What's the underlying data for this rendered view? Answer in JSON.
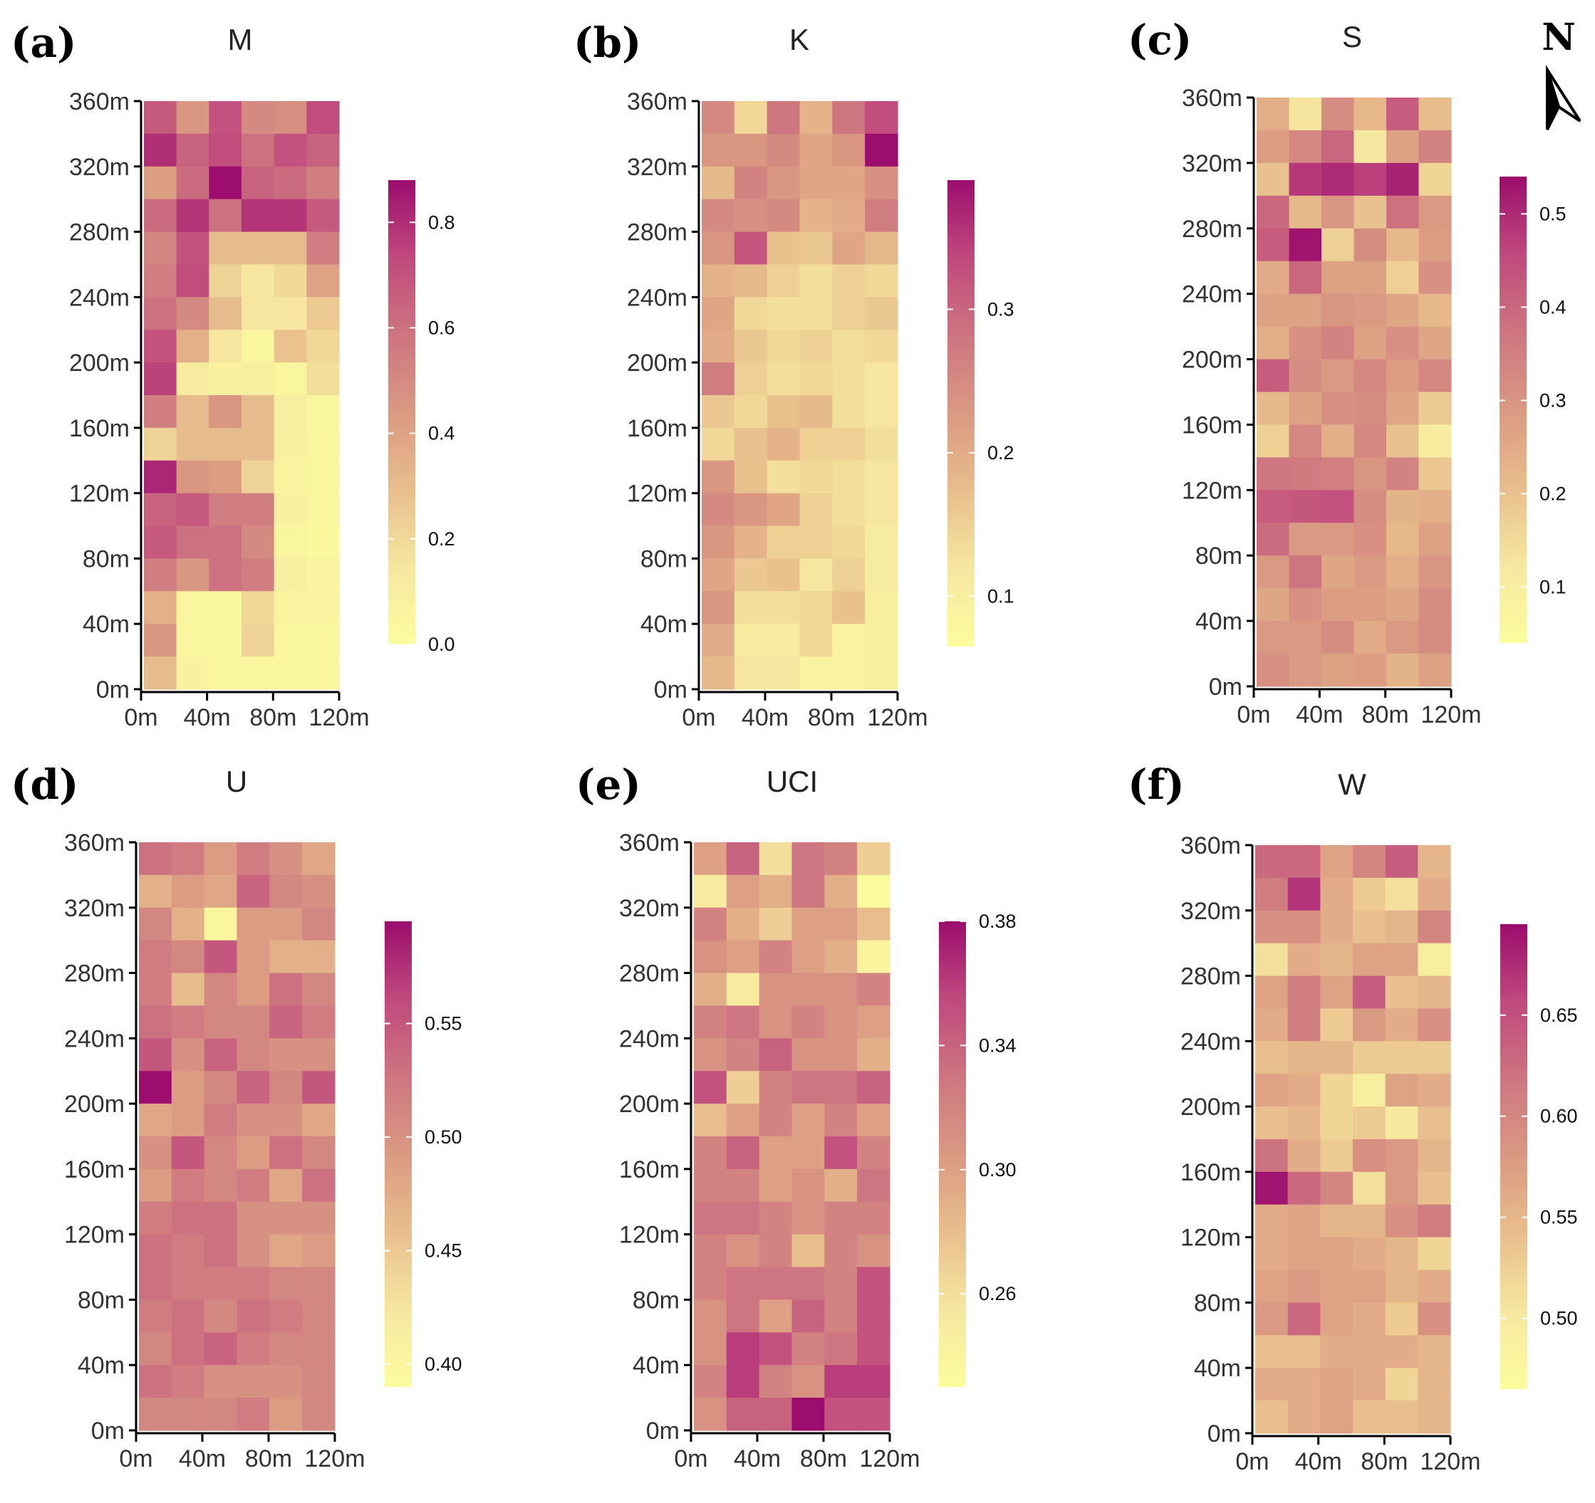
{
  "chart_data": [
    {
      "type": "heatmap",
      "panel_label": "(a)",
      "title": "M",
      "x_ticks": [
        "0m",
        "40m",
        "80m",
        "120m"
      ],
      "y_ticks": [
        "0m",
        "40m",
        "80m",
        "120m",
        "160m",
        "200m",
        "240m",
        "280m",
        "320m",
        "360m"
      ],
      "xlim": [
        0,
        120
      ],
      "ylim": [
        0,
        360
      ],
      "cell_size": 20,
      "colorbar": {
        "min": 0.0,
        "max": 0.88,
        "ticks": [
          0.0,
          0.2,
          0.4,
          0.6,
          0.8
        ],
        "tick_labels": [
          "0.0",
          "0.2",
          "0.4",
          "0.6",
          "0.8"
        ]
      },
      "grid_rows_top_to_bottom": [
        [
          0.68,
          0.45,
          0.7,
          0.5,
          0.48,
          0.72
        ],
        [
          0.8,
          0.65,
          0.72,
          0.6,
          0.7,
          0.65
        ],
        [
          0.42,
          0.62,
          0.88,
          0.65,
          0.62,
          0.55
        ],
        [
          0.62,
          0.78,
          0.6,
          0.78,
          0.78,
          0.68
        ],
        [
          0.52,
          0.7,
          0.3,
          0.3,
          0.3,
          0.55
        ],
        [
          0.55,
          0.72,
          0.22,
          0.15,
          0.2,
          0.4
        ],
        [
          0.6,
          0.5,
          0.3,
          0.15,
          0.15,
          0.25
        ],
        [
          0.7,
          0.35,
          0.15,
          0.05,
          0.28,
          0.2
        ],
        [
          0.75,
          0.12,
          0.08,
          0.1,
          0.04,
          0.18
        ],
        [
          0.55,
          0.3,
          0.45,
          0.3,
          0.1,
          0.05
        ],
        [
          0.22,
          0.3,
          0.3,
          0.3,
          0.08,
          0.04
        ],
        [
          0.82,
          0.45,
          0.42,
          0.22,
          0.06,
          0.04
        ],
        [
          0.65,
          0.68,
          0.55,
          0.55,
          0.08,
          0.04
        ],
        [
          0.68,
          0.6,
          0.6,
          0.5,
          0.05,
          0.03
        ],
        [
          0.55,
          0.45,
          0.6,
          0.55,
          0.1,
          0.06
        ],
        [
          0.35,
          0.04,
          0.04,
          0.2,
          0.07,
          0.06
        ],
        [
          0.45,
          0.04,
          0.04,
          0.22,
          0.05,
          0.04
        ],
        [
          0.3,
          0.08,
          0.04,
          0.04,
          0.04,
          0.04
        ]
      ]
    },
    {
      "type": "heatmap",
      "panel_label": "(b)",
      "title": "K",
      "x_ticks": [
        "0m",
        "40m",
        "80m",
        "120m"
      ],
      "y_ticks": [
        "0m",
        "40m",
        "80m",
        "120m",
        "160m",
        "200m",
        "240m",
        "280m",
        "320m",
        "360m"
      ],
      "xlim": [
        0,
        120
      ],
      "ylim": [
        0,
        360
      ],
      "cell_size": 20,
      "colorbar": {
        "min": 0.065,
        "max": 0.39,
        "ticks": [
          0.1,
          0.2,
          0.3
        ],
        "tick_labels": [
          "0.1",
          "0.2",
          "0.3"
        ]
      },
      "grid_rows_top_to_bottom": [
        [
          0.25,
          0.14,
          0.28,
          0.19,
          0.28,
          0.33
        ],
        [
          0.23,
          0.23,
          0.25,
          0.21,
          0.23,
          0.39
        ],
        [
          0.18,
          0.26,
          0.23,
          0.21,
          0.21,
          0.24
        ],
        [
          0.25,
          0.24,
          0.25,
          0.19,
          0.2,
          0.27
        ],
        [
          0.23,
          0.32,
          0.17,
          0.16,
          0.21,
          0.18
        ],
        [
          0.19,
          0.18,
          0.15,
          0.13,
          0.15,
          0.14
        ],
        [
          0.21,
          0.14,
          0.13,
          0.13,
          0.15,
          0.16
        ],
        [
          0.2,
          0.16,
          0.14,
          0.15,
          0.13,
          0.14
        ],
        [
          0.27,
          0.15,
          0.13,
          0.14,
          0.13,
          0.12
        ],
        [
          0.16,
          0.14,
          0.17,
          0.18,
          0.13,
          0.12
        ],
        [
          0.14,
          0.17,
          0.19,
          0.15,
          0.15,
          0.13
        ],
        [
          0.23,
          0.17,
          0.13,
          0.14,
          0.13,
          0.12
        ],
        [
          0.25,
          0.23,
          0.21,
          0.15,
          0.13,
          0.12
        ],
        [
          0.23,
          0.19,
          0.15,
          0.15,
          0.14,
          0.11
        ],
        [
          0.21,
          0.16,
          0.17,
          0.12,
          0.15,
          0.11
        ],
        [
          0.23,
          0.13,
          0.13,
          0.14,
          0.17,
          0.1
        ],
        [
          0.2,
          0.11,
          0.11,
          0.14,
          0.09,
          0.1
        ],
        [
          0.18,
          0.12,
          0.12,
          0.09,
          0.09,
          0.1
        ]
      ]
    },
    {
      "type": "heatmap",
      "panel_label": "(c)",
      "title": "S",
      "x_ticks": [
        "0m",
        "40m",
        "80m",
        "120m"
      ],
      "y_ticks": [
        "0m",
        "40m",
        "80m",
        "120m",
        "160m",
        "200m",
        "240m",
        "280m",
        "320m",
        "360m"
      ],
      "xlim": [
        0,
        120
      ],
      "ylim": [
        0,
        360
      ],
      "cell_size": 20,
      "colorbar": {
        "min": 0.04,
        "max": 0.54,
        "ticks": [
          0.1,
          0.2,
          0.3,
          0.4,
          0.5
        ],
        "tick_labels": [
          "0.1",
          "0.2",
          "0.3",
          "0.4",
          "0.5"
        ]
      },
      "grid_rows_top_to_bottom": [
        [
          0.24,
          0.13,
          0.32,
          0.22,
          0.42,
          0.21
        ],
        [
          0.28,
          0.33,
          0.4,
          0.12,
          0.27,
          0.34
        ],
        [
          0.2,
          0.48,
          0.5,
          0.47,
          0.51,
          0.16
        ],
        [
          0.4,
          0.22,
          0.3,
          0.2,
          0.38,
          0.29
        ],
        [
          0.42,
          0.53,
          0.17,
          0.32,
          0.22,
          0.28
        ],
        [
          0.25,
          0.4,
          0.27,
          0.27,
          0.17,
          0.31
        ],
        [
          0.27,
          0.27,
          0.3,
          0.29,
          0.26,
          0.22
        ],
        [
          0.24,
          0.31,
          0.34,
          0.27,
          0.31,
          0.26
        ],
        [
          0.42,
          0.32,
          0.29,
          0.33,
          0.28,
          0.33
        ],
        [
          0.22,
          0.27,
          0.31,
          0.32,
          0.26,
          0.18
        ],
        [
          0.17,
          0.33,
          0.24,
          0.33,
          0.2,
          0.1
        ],
        [
          0.37,
          0.36,
          0.35,
          0.3,
          0.34,
          0.19
        ],
        [
          0.42,
          0.43,
          0.44,
          0.32,
          0.23,
          0.24
        ],
        [
          0.39,
          0.29,
          0.29,
          0.31,
          0.22,
          0.27
        ],
        [
          0.29,
          0.37,
          0.26,
          0.29,
          0.24,
          0.3
        ],
        [
          0.26,
          0.31,
          0.28,
          0.28,
          0.26,
          0.32
        ],
        [
          0.29,
          0.29,
          0.32,
          0.25,
          0.29,
          0.32
        ],
        [
          0.31,
          0.29,
          0.27,
          0.28,
          0.23,
          0.27
        ]
      ]
    },
    {
      "type": "heatmap",
      "panel_label": "(d)",
      "title": "U",
      "x_ticks": [
        "0m",
        "40m",
        "80m",
        "120m"
      ],
      "y_ticks": [
        "0m",
        "40m",
        "80m",
        "120m",
        "160m",
        "200m",
        "240m",
        "280m",
        "320m",
        "360m"
      ],
      "xlim": [
        0,
        120
      ],
      "ylim": [
        0,
        360
      ],
      "cell_size": 20,
      "colorbar": {
        "min": 0.39,
        "max": 0.595,
        "ticks": [
          0.4,
          0.45,
          0.5,
          0.55
        ],
        "tick_labels": [
          "0.40",
          "0.45",
          "0.50",
          "0.55"
        ]
      },
      "grid_rows_top_to_bottom": [
        [
          0.53,
          0.52,
          0.49,
          0.52,
          0.5,
          0.48
        ],
        [
          0.47,
          0.49,
          0.48,
          0.54,
          0.51,
          0.5
        ],
        [
          0.51,
          0.47,
          0.4,
          0.49,
          0.49,
          0.51
        ],
        [
          0.52,
          0.51,
          0.55,
          0.49,
          0.47,
          0.47
        ],
        [
          0.52,
          0.46,
          0.51,
          0.49,
          0.53,
          0.51
        ],
        [
          0.53,
          0.52,
          0.51,
          0.51,
          0.54,
          0.52
        ],
        [
          0.55,
          0.5,
          0.54,
          0.51,
          0.5,
          0.5
        ],
        [
          0.595,
          0.49,
          0.51,
          0.54,
          0.51,
          0.55
        ],
        [
          0.48,
          0.49,
          0.52,
          0.5,
          0.5,
          0.48
        ],
        [
          0.5,
          0.55,
          0.51,
          0.49,
          0.53,
          0.51
        ],
        [
          0.49,
          0.52,
          0.51,
          0.52,
          0.48,
          0.53
        ],
        [
          0.52,
          0.53,
          0.53,
          0.5,
          0.5,
          0.5
        ],
        [
          0.53,
          0.52,
          0.53,
          0.5,
          0.48,
          0.49
        ],
        [
          0.53,
          0.52,
          0.52,
          0.52,
          0.51,
          0.51
        ],
        [
          0.52,
          0.53,
          0.51,
          0.53,
          0.52,
          0.51
        ],
        [
          0.51,
          0.53,
          0.54,
          0.52,
          0.51,
          0.51
        ],
        [
          0.53,
          0.52,
          0.5,
          0.5,
          0.5,
          0.51
        ],
        [
          0.51,
          0.51,
          0.51,
          0.52,
          0.49,
          0.51
        ]
      ]
    },
    {
      "type": "heatmap",
      "panel_label": "(e)",
      "title": "UCI",
      "x_ticks": [
        "0m",
        "40m",
        "80m",
        "120m"
      ],
      "y_ticks": [
        "0m",
        "40m",
        "80m",
        "120m",
        "160m",
        "200m",
        "240m",
        "280m",
        "320m",
        "360m"
      ],
      "xlim": [
        0,
        120
      ],
      "ylim": [
        0,
        360
      ],
      "cell_size": 20,
      "colorbar": {
        "min": 0.23,
        "max": 0.38,
        "ticks": [
          0.26,
          0.3,
          0.34,
          0.38
        ],
        "tick_labels": [
          "0.26",
          "0.30",
          "0.34",
          "0.38"
        ]
      },
      "grid_rows_top_to_bottom": [
        [
          0.3,
          0.34,
          0.26,
          0.33,
          0.32,
          0.27
        ],
        [
          0.25,
          0.3,
          0.29,
          0.33,
          0.29,
          0.23
        ],
        [
          0.32,
          0.29,
          0.27,
          0.3,
          0.3,
          0.28
        ],
        [
          0.31,
          0.3,
          0.32,
          0.3,
          0.29,
          0.24
        ],
        [
          0.29,
          0.25,
          0.31,
          0.31,
          0.31,
          0.32
        ],
        [
          0.32,
          0.33,
          0.31,
          0.32,
          0.31,
          0.3
        ],
        [
          0.31,
          0.32,
          0.34,
          0.31,
          0.31,
          0.29
        ],
        [
          0.35,
          0.27,
          0.32,
          0.33,
          0.33,
          0.34
        ],
        [
          0.28,
          0.3,
          0.32,
          0.3,
          0.32,
          0.3
        ],
        [
          0.32,
          0.34,
          0.3,
          0.3,
          0.35,
          0.32
        ],
        [
          0.32,
          0.32,
          0.3,
          0.31,
          0.29,
          0.33
        ],
        [
          0.33,
          0.33,
          0.32,
          0.31,
          0.32,
          0.32
        ],
        [
          0.32,
          0.31,
          0.32,
          0.28,
          0.32,
          0.31
        ],
        [
          0.32,
          0.33,
          0.33,
          0.33,
          0.32,
          0.35
        ],
        [
          0.31,
          0.33,
          0.3,
          0.34,
          0.32,
          0.35
        ],
        [
          0.31,
          0.36,
          0.35,
          0.32,
          0.33,
          0.35
        ],
        [
          0.32,
          0.36,
          0.32,
          0.31,
          0.36,
          0.36
        ],
        [
          0.31,
          0.34,
          0.34,
          0.38,
          0.35,
          0.35
        ]
      ]
    },
    {
      "type": "heatmap",
      "panel_label": "(f)",
      "title": "W",
      "x_ticks": [
        "0m",
        "40m",
        "80m",
        "120m"
      ],
      "y_ticks": [
        "0m",
        "40m",
        "80m",
        "120m",
        "160m",
        "200m",
        "240m",
        "280m",
        "320m",
        "360m"
      ],
      "xlim": [
        0,
        120
      ],
      "ylim": [
        0,
        360
      ],
      "cell_size": 20,
      "colorbar": {
        "min": 0.465,
        "max": 0.695,
        "ticks": [
          0.5,
          0.55,
          0.6,
          0.65
        ],
        "tick_labels": [
          "0.50",
          "0.55",
          "0.60",
          "0.65"
        ]
      },
      "grid_rows_top_to_bottom": [
        [
          0.63,
          0.63,
          0.57,
          0.6,
          0.64,
          0.55
        ],
        [
          0.61,
          0.67,
          0.56,
          0.53,
          0.51,
          0.56
        ],
        [
          0.59,
          0.59,
          0.56,
          0.54,
          0.55,
          0.6
        ],
        [
          0.51,
          0.56,
          0.55,
          0.57,
          0.57,
          0.49
        ],
        [
          0.57,
          0.61,
          0.57,
          0.64,
          0.54,
          0.55
        ],
        [
          0.56,
          0.61,
          0.53,
          0.58,
          0.56,
          0.59
        ],
        [
          0.54,
          0.55,
          0.55,
          0.53,
          0.53,
          0.53
        ],
        [
          0.57,
          0.56,
          0.52,
          0.49,
          0.57,
          0.56
        ],
        [
          0.54,
          0.55,
          0.52,
          0.53,
          0.5,
          0.54
        ],
        [
          0.62,
          0.56,
          0.53,
          0.59,
          0.58,
          0.55
        ],
        [
          0.69,
          0.63,
          0.6,
          0.51,
          0.58,
          0.54
        ],
        [
          0.56,
          0.57,
          0.55,
          0.55,
          0.59,
          0.61
        ],
        [
          0.56,
          0.57,
          0.57,
          0.56,
          0.55,
          0.52
        ],
        [
          0.57,
          0.58,
          0.57,
          0.57,
          0.55,
          0.56
        ],
        [
          0.58,
          0.63,
          0.57,
          0.56,
          0.53,
          0.59
        ],
        [
          0.54,
          0.54,
          0.56,
          0.56,
          0.56,
          0.55
        ],
        [
          0.56,
          0.56,
          0.57,
          0.56,
          0.52,
          0.55
        ],
        [
          0.54,
          0.56,
          0.57,
          0.54,
          0.54,
          0.55
        ]
      ]
    }
  ],
  "north_arrow": {
    "label": "N"
  },
  "colors": {
    "ramp": [
      "#FCFC9E",
      "#F6E7A0",
      "#E8BE8C",
      "#DA9982",
      "#CD7580",
      "#C0497D",
      "#9C0D6E"
    ],
    "axis": "#000000",
    "tick_text": "#333333",
    "background": "#FFFFFF"
  }
}
